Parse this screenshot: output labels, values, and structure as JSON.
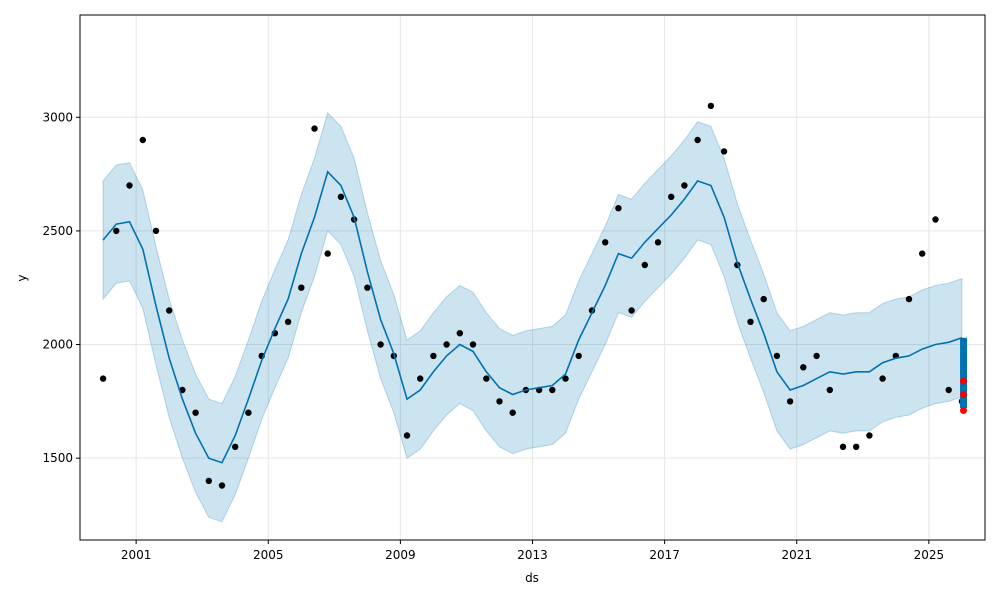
{
  "chart_data": {
    "type": "line",
    "title": "",
    "xlabel": "ds",
    "ylabel": "y",
    "xlim": [
      1999.3,
      2026.7
    ],
    "ylim": [
      1140,
      3450
    ],
    "grid": true,
    "x_ticks": [
      2001,
      2005,
      2009,
      2013,
      2017,
      2021,
      2025
    ],
    "x_tick_labels": [
      "2001",
      "2005",
      "2009",
      "2013",
      "2017",
      "2021",
      "2025"
    ],
    "y_ticks": [
      1500,
      2000,
      2500,
      3000
    ],
    "y_tick_labels": [
      "1500",
      "2000",
      "2500",
      "3000"
    ],
    "colors": {
      "observed": "#000000",
      "forecast": "#0072B2",
      "interval": "#0072B2",
      "forecast_extension": "#0072B2",
      "highlight": "#ff0000",
      "grid": "#e6e6e6"
    },
    "series": [
      {
        "kind": "observed",
        "x": [
          2000.0,
          2000.4,
          2000.8,
          2001.2,
          2001.6,
          2002.0,
          2002.4,
          2002.8,
          2003.2,
          2003.6,
          2004.0,
          2004.4,
          2004.8,
          2005.2,
          2005.6,
          2006.0,
          2006.4,
          2006.8,
          2007.2,
          2007.6,
          2008.0,
          2008.4,
          2008.8,
          2009.2,
          2009.6,
          2010.0,
          2010.4,
          2010.8,
          2011.2,
          2011.6,
          2012.0,
          2012.4,
          2012.8,
          2013.2,
          2013.6,
          2014.0,
          2014.4,
          2014.8,
          2015.2,
          2015.6,
          2016.0,
          2016.4,
          2016.8,
          2017.2,
          2017.6,
          2018.0,
          2018.4,
          2018.8,
          2019.2,
          2019.6,
          2020.0,
          2020.4,
          2020.8,
          2021.2,
          2021.6,
          2022.0,
          2022.4,
          2022.8,
          2023.2,
          2023.6,
          2024.0,
          2024.4,
          2024.8,
          2025.2,
          2025.6,
          2026.0
        ],
        "y": [
          1850,
          2500,
          2700,
          2900,
          2500,
          2150,
          1800,
          1700,
          1400,
          1380,
          1550,
          1700,
          1950,
          2050,
          2100,
          2250,
          2950,
          2400,
          2650,
          2550,
          2250,
          2000,
          1950,
          1600,
          1850,
          1950,
          2000,
          2050,
          2000,
          1850,
          1750,
          1700,
          1800,
          1800,
          1800,
          1850,
          1950,
          2150,
          2450,
          2600,
          2150,
          2350,
          2450,
          2650,
          2700,
          2900,
          3050,
          2850,
          2350,
          2100,
          2200,
          1950,
          1750,
          1900,
          1950,
          1800,
          1550,
          1550,
          1600,
          1850,
          1950,
          2200,
          2400,
          2550,
          1800,
          1750
        ]
      },
      {
        "kind": "forecast",
        "x": [
          2000.0,
          2000.4,
          2000.8,
          2001.2,
          2001.6,
          2002.0,
          2002.4,
          2002.8,
          2003.2,
          2003.6,
          2004.0,
          2004.4,
          2004.8,
          2005.2,
          2005.6,
          2006.0,
          2006.4,
          2006.8,
          2007.2,
          2007.6,
          2008.0,
          2008.4,
          2008.8,
          2009.2,
          2009.6,
          2010.0,
          2010.4,
          2010.8,
          2011.2,
          2011.6,
          2012.0,
          2012.4,
          2012.8,
          2013.2,
          2013.6,
          2014.0,
          2014.4,
          2014.8,
          2015.2,
          2015.6,
          2016.0,
          2016.4,
          2016.8,
          2017.2,
          2017.6,
          2018.0,
          2018.4,
          2018.8,
          2019.2,
          2019.6,
          2020.0,
          2020.4,
          2020.8,
          2021.2,
          2021.6,
          2022.0,
          2022.4,
          2022.8,
          2023.2,
          2023.6,
          2024.0,
          2024.4,
          2024.8,
          2025.2,
          2025.6,
          2026.0
        ],
        "y": [
          2460,
          2530,
          2540,
          2420,
          2170,
          1940,
          1760,
          1610,
          1500,
          1480,
          1600,
          1760,
          1930,
          2070,
          2200,
          2400,
          2560,
          2760,
          2700,
          2560,
          2320,
          2110,
          1960,
          1760,
          1800,
          1880,
          1950,
          2000,
          1970,
          1880,
          1810,
          1780,
          1800,
          1810,
          1820,
          1870,
          2020,
          2140,
          2260,
          2400,
          2380,
          2450,
          2510,
          2570,
          2640,
          2720,
          2700,
          2560,
          2360,
          2200,
          2050,
          1880,
          1800,
          1820,
          1850,
          1880,
          1870,
          1880,
          1880,
          1920,
          1940,
          1950,
          1980,
          2000,
          2010,
          2030
        ]
      }
    ],
    "interval": {
      "x": [
        2000.0,
        2000.4,
        2000.8,
        2001.2,
        2001.6,
        2002.0,
        2002.4,
        2002.8,
        2003.2,
        2003.6,
        2004.0,
        2004.4,
        2004.8,
        2005.2,
        2005.6,
        2006.0,
        2006.4,
        2006.8,
        2007.2,
        2007.6,
        2008.0,
        2008.4,
        2008.8,
        2009.2,
        2009.6,
        2010.0,
        2010.4,
        2010.8,
        2011.2,
        2011.6,
        2012.0,
        2012.4,
        2012.8,
        2013.2,
        2013.6,
        2014.0,
        2014.4,
        2014.8,
        2015.2,
        2015.6,
        2016.0,
        2016.4,
        2016.8,
        2017.2,
        2017.6,
        2018.0,
        2018.4,
        2018.8,
        2019.2,
        2019.6,
        2020.0,
        2020.4,
        2020.8,
        2021.2,
        2021.6,
        2022.0,
        2022.4,
        2022.8,
        2023.2,
        2023.6,
        2024.0,
        2024.4,
        2024.8,
        2025.2,
        2025.6,
        2026.0
      ],
      "yhat_lower": [
        2200,
        2270,
        2280,
        2160,
        1910,
        1680,
        1500,
        1350,
        1240,
        1220,
        1340,
        1500,
        1670,
        1810,
        1940,
        2140,
        2300,
        2500,
        2440,
        2300,
        2060,
        1850,
        1700,
        1500,
        1540,
        1620,
        1690,
        1740,
        1710,
        1620,
        1550,
        1520,
        1540,
        1550,
        1560,
        1610,
        1760,
        1880,
        2000,
        2140,
        2120,
        2190,
        2250,
        2310,
        2380,
        2460,
        2440,
        2300,
        2100,
        1940,
        1790,
        1620,
        1540,
        1560,
        1590,
        1620,
        1610,
        1620,
        1620,
        1660,
        1680,
        1690,
        1720,
        1740,
        1750,
        1770
      ],
      "yhat_upper": [
        2720,
        2790,
        2800,
        2680,
        2430,
        2200,
        2020,
        1870,
        1760,
        1740,
        1860,
        2020,
        2190,
        2330,
        2460,
        2660,
        2820,
        3020,
        2960,
        2820,
        2580,
        2370,
        2220,
        2020,
        2060,
        2140,
        2210,
        2260,
        2230,
        2140,
        2070,
        2040,
        2060,
        2070,
        2080,
        2130,
        2280,
        2400,
        2520,
        2660,
        2640,
        2710,
        2770,
        2830,
        2900,
        2980,
        2960,
        2820,
        2620,
        2460,
        2310,
        2140,
        2060,
        2080,
        2110,
        2140,
        2130,
        2140,
        2140,
        2180,
        2200,
        2210,
        2240,
        2260,
        2270,
        2290
      ]
    },
    "forecast_extension": {
      "x": 2026.05,
      "y_from": 1720,
      "y_to": 2030
    },
    "highlight_points": {
      "x": [
        2026.05,
        2026.05,
        2026.05
      ],
      "y": [
        1710,
        1780,
        1840
      ]
    }
  }
}
